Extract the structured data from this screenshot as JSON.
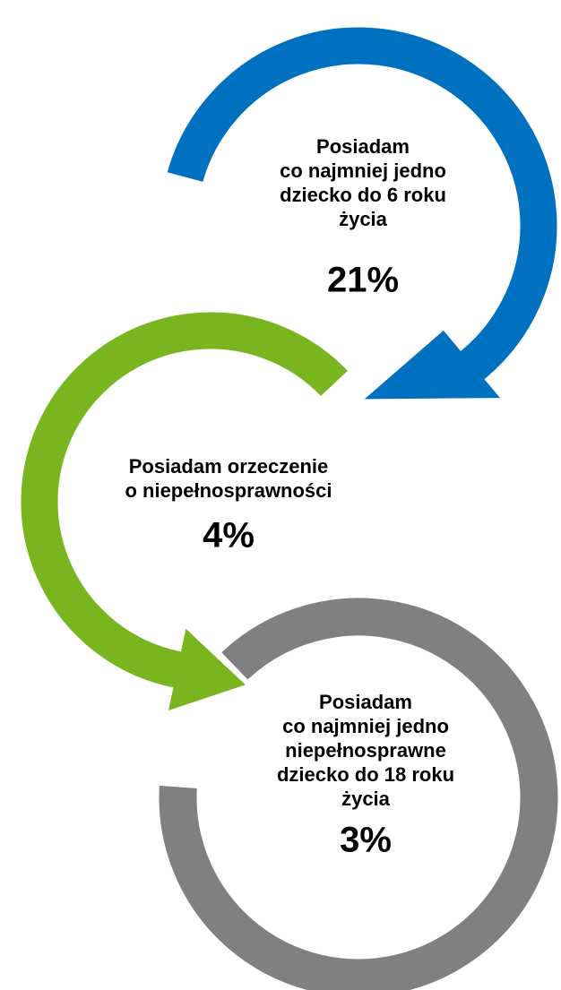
{
  "nodes": [
    {
      "lines": [
        "Posiadam",
        "co najmniej jedno",
        "dziecko do 6 roku",
        "życia"
      ],
      "value": "21%"
    },
    {
      "lines": [
        "Posiadam orzeczenie",
        "o niepełnosprawności"
      ],
      "value": "4%"
    },
    {
      "lines": [
        "Posiadam",
        "co najmniej jedno",
        "niepełnosprawne",
        "dziecko do 18 roku",
        "życia"
      ],
      "value": "3%"
    }
  ]
}
